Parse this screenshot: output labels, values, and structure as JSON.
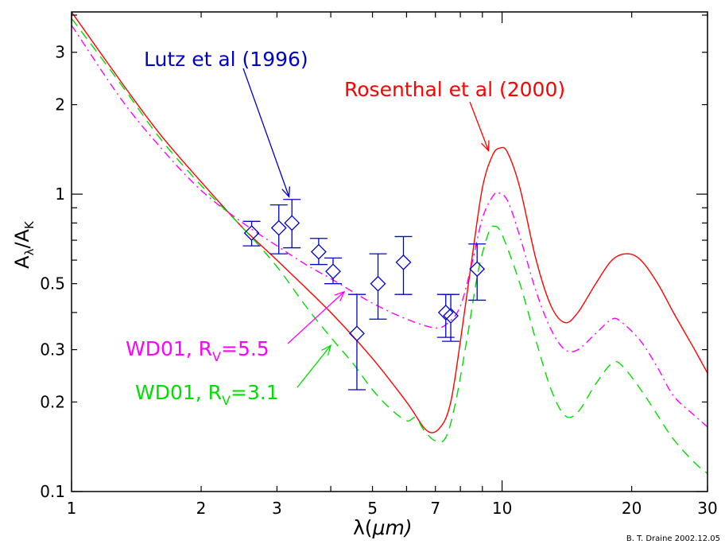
{
  "chart_data": {
    "type": "scatter",
    "xscale": "log",
    "yscale": "log",
    "xlim": [
      1,
      30
    ],
    "ylim": [
      0.1,
      4.1
    ],
    "grid": false,
    "x_ticks": [
      {
        "value": 1,
        "label": "1"
      },
      {
        "value": 2,
        "label": "2"
      },
      {
        "value": 3,
        "label": "3"
      },
      {
        "value": 5,
        "label": "5"
      },
      {
        "value": 7,
        "label": "7"
      },
      {
        "value": 10,
        "label": "10"
      },
      {
        "value": 20,
        "label": "20"
      },
      {
        "value": 30,
        "label": "30"
      }
    ],
    "y_ticks": [
      {
        "value": 0.1,
        "label": "0.1"
      },
      {
        "value": 0.2,
        "label": "0.2"
      },
      {
        "value": 0.3,
        "label": "0.3"
      },
      {
        "value": 0.5,
        "label": "0.5"
      },
      {
        "value": 1,
        "label": "1"
      },
      {
        "value": 2,
        "label": "2"
      },
      {
        "value": 3,
        "label": "3"
      }
    ],
    "xlabel": {
      "main": "λ(",
      "mu": "μ",
      "rest": "m)"
    },
    "ylabel": {
      "num": "A",
      "num_sub": "λ",
      "den": "A",
      "den_sub": "K"
    },
    "credit": "B. T. Draine  2002.12.05",
    "series": [
      {
        "name": "Rosenthal et al (2000)",
        "color": "#ff0000",
        "dash": "",
        "points": [
          [
            1,
            4.1
          ],
          [
            1.3,
            2.4
          ],
          [
            1.6,
            1.6
          ],
          [
            2,
            1.1
          ],
          [
            2.5,
            0.77
          ],
          [
            3,
            0.6
          ],
          [
            4,
            0.4
          ],
          [
            5,
            0.28
          ],
          [
            6,
            0.2
          ],
          [
            6.7,
            0.16
          ],
          [
            7.2,
            0.165
          ],
          [
            7.6,
            0.2
          ],
          [
            8,
            0.32
          ],
          [
            8.5,
            0.6
          ],
          [
            9,
            1.05
          ],
          [
            9.5,
            1.35
          ],
          [
            9.9,
            1.43
          ],
          [
            10.3,
            1.38
          ],
          [
            11,
            1.05
          ],
          [
            12,
            0.6
          ],
          [
            13,
            0.42
          ],
          [
            14,
            0.37
          ],
          [
            15,
            0.4
          ],
          [
            16.5,
            0.5
          ],
          [
            18,
            0.6
          ],
          [
            19.5,
            0.63
          ],
          [
            21,
            0.6
          ],
          [
            23,
            0.5
          ],
          [
            25,
            0.4
          ],
          [
            28,
            0.3
          ],
          [
            30,
            0.25
          ]
        ]
      },
      {
        "name": "WD01, R",
        "name_sub": "V",
        "name_value": "=5.5",
        "color": "#ff00ff",
        "dash": "10,5,2,5",
        "points": [
          [
            1,
            3.7
          ],
          [
            1.3,
            2.1
          ],
          [
            1.6,
            1.45
          ],
          [
            2,
            1.03
          ],
          [
            2.5,
            0.8
          ],
          [
            3,
            0.67
          ],
          [
            3.5,
            0.58
          ],
          [
            4,
            0.52
          ],
          [
            5,
            0.43
          ],
          [
            6,
            0.38
          ],
          [
            7,
            0.355
          ],
          [
            7.5,
            0.37
          ],
          [
            8,
            0.42
          ],
          [
            8.5,
            0.58
          ],
          [
            9,
            0.83
          ],
          [
            9.5,
            0.98
          ],
          [
            9.8,
            1.01
          ],
          [
            10.3,
            0.95
          ],
          [
            11,
            0.72
          ],
          [
            12,
            0.47
          ],
          [
            13,
            0.35
          ],
          [
            14,
            0.3
          ],
          [
            15,
            0.3
          ],
          [
            16.5,
            0.34
          ],
          [
            18,
            0.38
          ],
          [
            19,
            0.37
          ],
          [
            21,
            0.32
          ],
          [
            23,
            0.26
          ],
          [
            25,
            0.21
          ],
          [
            28,
            0.18
          ],
          [
            30,
            0.165
          ]
        ]
      },
      {
        "name": "WD01, R",
        "name_sub": "V",
        "name_value": "=3.1",
        "color": "#00dd00",
        "dash": "12,8",
        "points": [
          [
            1,
            3.9
          ],
          [
            1.3,
            2.35
          ],
          [
            1.6,
            1.55
          ],
          [
            2,
            1.07
          ],
          [
            2.5,
            0.77
          ],
          [
            3,
            0.57
          ],
          [
            3.5,
            0.42
          ],
          [
            4,
            0.33
          ],
          [
            4.5,
            0.27
          ],
          [
            5,
            0.22
          ],
          [
            5.5,
            0.19
          ],
          [
            6,
            0.173
          ],
          [
            6.3,
            0.177
          ],
          [
            6.6,
            0.16
          ],
          [
            7,
            0.148
          ],
          [
            7.4,
            0.152
          ],
          [
            7.8,
            0.2
          ],
          [
            8.3,
            0.33
          ],
          [
            8.8,
            0.55
          ],
          [
            9.3,
            0.74
          ],
          [
            9.6,
            0.78
          ],
          [
            10,
            0.73
          ],
          [
            11,
            0.5
          ],
          [
            12,
            0.32
          ],
          [
            13,
            0.22
          ],
          [
            14,
            0.18
          ],
          [
            15,
            0.185
          ],
          [
            16.5,
            0.23
          ],
          [
            18,
            0.27
          ],
          [
            19,
            0.265
          ],
          [
            21,
            0.22
          ],
          [
            23,
            0.18
          ],
          [
            25,
            0.15
          ],
          [
            28,
            0.125
          ],
          [
            30,
            0.115
          ]
        ]
      },
      {
        "name": "Lutz et al (1996)",
        "color": "#0000cc",
        "marker": "diamond",
        "error_bars": true,
        "points": [
          {
            "x": 2.62,
            "y": 0.74,
            "ylo": 0.67,
            "yhi": 0.81
          },
          {
            "x": 3.03,
            "y": 0.77,
            "ylo": 0.63,
            "yhi": 0.92
          },
          {
            "x": 3.25,
            "y": 0.8,
            "ylo": 0.66,
            "yhi": 0.96
          },
          {
            "x": 3.75,
            "y": 0.64,
            "ylo": 0.58,
            "yhi": 0.71
          },
          {
            "x": 4.05,
            "y": 0.55,
            "ylo": 0.5,
            "yhi": 0.61
          },
          {
            "x": 4.6,
            "y": 0.34,
            "ylo": 0.22,
            "yhi": 0.46
          },
          {
            "x": 5.15,
            "y": 0.5,
            "ylo": 0.38,
            "yhi": 0.63
          },
          {
            "x": 5.9,
            "y": 0.59,
            "ylo": 0.46,
            "yhi": 0.72
          },
          {
            "x": 7.4,
            "y": 0.4,
            "ylo": 0.33,
            "yhi": 0.46
          },
          {
            "x": 7.6,
            "y": 0.39,
            "ylo": 0.32,
            "yhi": 0.46
          },
          {
            "x": 8.75,
            "y": 0.56,
            "ylo": 0.44,
            "yhi": 0.68
          }
        ]
      }
    ],
    "annotations": [
      {
        "id": "lutz",
        "text": "Lutz et al (1996)",
        "color": "#0000cc",
        "arrow_to": {
          "x": 3.2,
          "y": 0.98
        }
      },
      {
        "id": "rosenthal",
        "text": "Rosenthal et al (2000)",
        "color": "#ff0000",
        "arrow_to": {
          "x": 9.3,
          "y": 1.4
        }
      },
      {
        "id": "wd55",
        "color": "#ff00ff",
        "arrow_to": {
          "x": 4.3,
          "y": 0.47
        }
      },
      {
        "id": "wd31",
        "color": "#00dd00",
        "arrow_to": {
          "x": 4.0,
          "y": 0.31
        }
      }
    ]
  }
}
